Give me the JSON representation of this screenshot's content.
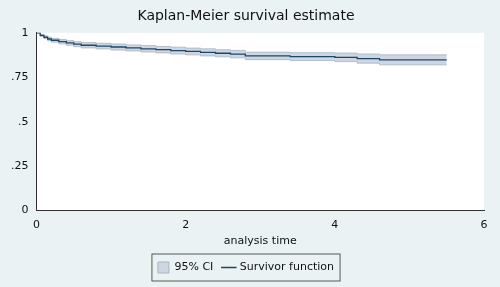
{
  "chart_data": {
    "type": "line",
    "title": "Kaplan-Meier survival estimate",
    "x_label": "analysis time",
    "x": [
      0,
      0.05,
      0.1,
      0.15,
      0.2,
      0.3,
      0.4,
      0.5,
      0.6,
      0.8,
      1.0,
      1.2,
      1.4,
      1.6,
      1.8,
      2.0,
      2.2,
      2.4,
      2.6,
      2.8,
      3.4,
      4.0,
      4.3,
      4.6,
      5.5
    ],
    "series": [
      {
        "name": "95% CI",
        "type": "band",
        "color": "#cdd6e1",
        "lower": [
          1,
          0.979,
          0.967,
          0.955,
          0.947,
          0.938,
          0.93,
          0.922,
          0.915,
          0.909,
          0.903,
          0.898,
          0.892,
          0.887,
          0.881,
          0.876,
          0.87,
          0.865,
          0.859,
          0.849,
          0.844,
          0.838,
          0.829,
          0.82,
          0.82
        ],
        "upper": [
          1,
          0.991,
          0.983,
          0.975,
          0.969,
          0.962,
          0.956,
          0.95,
          0.945,
          0.941,
          0.937,
          0.932,
          0.928,
          0.923,
          0.919,
          0.914,
          0.91,
          0.905,
          0.901,
          0.891,
          0.888,
          0.886,
          0.881,
          0.876,
          0.876
        ]
      },
      {
        "name": "Survivor function",
        "type": "line",
        "color": "#1a476f",
        "values": [
          1,
          0.985,
          0.975,
          0.965,
          0.958,
          0.95,
          0.943,
          0.936,
          0.93,
          0.925,
          0.92,
          0.915,
          0.91,
          0.905,
          0.9,
          0.895,
          0.89,
          0.885,
          0.88,
          0.87,
          0.866,
          0.862,
          0.855,
          0.848,
          0.848
        ]
      }
    ],
    "xlim": [
      0,
      6
    ],
    "xticks": [
      0,
      2,
      4,
      6
    ],
    "ylim": [
      0,
      1
    ],
    "yticks": [
      0,
      {
        "value": 0.25,
        "label": ".25"
      },
      {
        "value": 0.5,
        "label": ".5"
      },
      {
        "value": 0.75,
        "label": ".75"
      },
      1
    ],
    "grid": false,
    "legend": "bottom"
  }
}
